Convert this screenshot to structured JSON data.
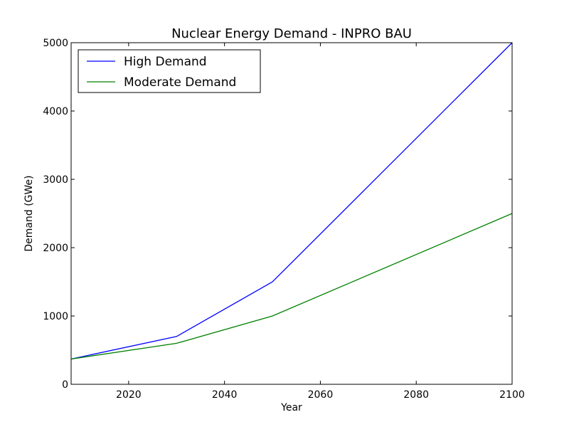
{
  "chart_data": {
    "type": "line",
    "title": "Nuclear Energy Demand - INPRO BAU",
    "xlabel": "Year",
    "ylabel": "Demand (GWe)",
    "xlim": [
      2008,
      2100
    ],
    "ylim": [
      0,
      5000
    ],
    "x_ticks": [
      2020,
      2040,
      2060,
      2080,
      2100
    ],
    "y_ticks": [
      0,
      1000,
      2000,
      3000,
      4000,
      5000
    ],
    "grid": false,
    "legend_position": "top-left",
    "series": [
      {
        "name": "High Demand",
        "color": "#0000ff",
        "x": [
          2008,
          2030,
          2050,
          2100
        ],
        "values": [
          370,
          700,
          1500,
          5000
        ]
      },
      {
        "name": "Moderate Demand",
        "color": "#008000",
        "x": [
          2008,
          2030,
          2050,
          2100
        ],
        "values": [
          370,
          600,
          1000,
          2500
        ]
      }
    ]
  }
}
